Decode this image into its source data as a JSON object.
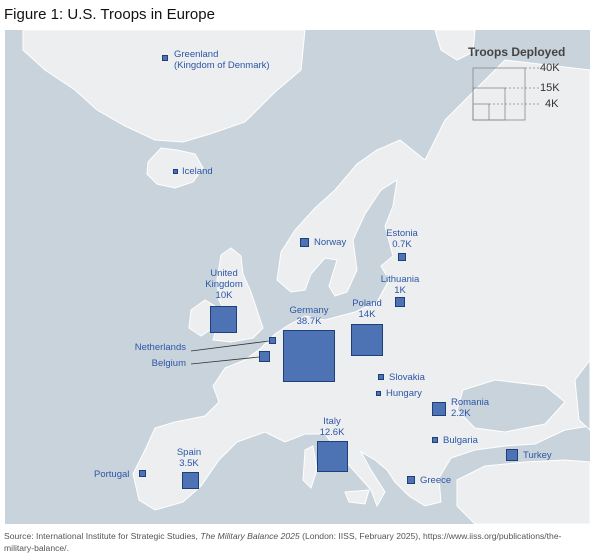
{
  "figure": {
    "title": "Figure 1: U.S. Troops in Europe",
    "source_prefix": "Source: International Institute for Strategic Studies, ",
    "source_italic": "The Military Balance 2025",
    "source_suffix": " (London: IISS, February 2025), https://www.iiss.org/publications/the-military-balance/."
  },
  "legend": {
    "title": "Troops Deployed",
    "values": [
      {
        "label": "40K",
        "troops": 40000
      },
      {
        "label": "15K",
        "troops": 15000
      },
      {
        "label": "4K",
        "troops": 4000
      }
    ]
  },
  "colors": {
    "marker": "#4d73b5",
    "marker_border": "#1f3f7a",
    "label": "#2d56a6",
    "sea": "#c9d3dc",
    "land": "#eceeef"
  },
  "countries": [
    {
      "id": "greenland",
      "label": [
        "Greenland",
        "(Kingdom of Denmark)"
      ],
      "value": ""
    },
    {
      "id": "iceland",
      "label": [
        "Iceland"
      ],
      "value": ""
    },
    {
      "id": "norway",
      "label": [
        "Norway"
      ],
      "value": ""
    },
    {
      "id": "estonia",
      "label": [
        "Estonia"
      ],
      "value": "0.7K"
    },
    {
      "id": "lithuania",
      "label": [
        "Lithuania"
      ],
      "value": "1K"
    },
    {
      "id": "united-kingdom",
      "label": [
        "United",
        "Kingdom"
      ],
      "value": "10K"
    },
    {
      "id": "germany",
      "label": [
        "Germany"
      ],
      "value": "38.7K"
    },
    {
      "id": "poland",
      "label": [
        "Poland"
      ],
      "value": "14K"
    },
    {
      "id": "netherlands",
      "label": [
        "Netherlands"
      ],
      "value": ""
    },
    {
      "id": "belgium",
      "label": [
        "Belgium"
      ],
      "value": ""
    },
    {
      "id": "slovakia",
      "label": [
        "Slovakia"
      ],
      "value": ""
    },
    {
      "id": "hungary",
      "label": [
        "Hungary"
      ],
      "value": ""
    },
    {
      "id": "romania",
      "label": [
        "Romania"
      ],
      "value": "2.2K"
    },
    {
      "id": "italy",
      "label": [
        "Italy"
      ],
      "value": "12.6K"
    },
    {
      "id": "bulgaria",
      "label": [
        "Bulgaria"
      ],
      "value": ""
    },
    {
      "id": "spain",
      "label": [
        "Spain"
      ],
      "value": "3.5K"
    },
    {
      "id": "portugal",
      "label": [
        "Portugal"
      ],
      "value": ""
    },
    {
      "id": "turkey",
      "label": [
        "Turkey"
      ],
      "value": ""
    },
    {
      "id": "greece",
      "label": [
        "Greece"
      ],
      "value": ""
    }
  ]
}
